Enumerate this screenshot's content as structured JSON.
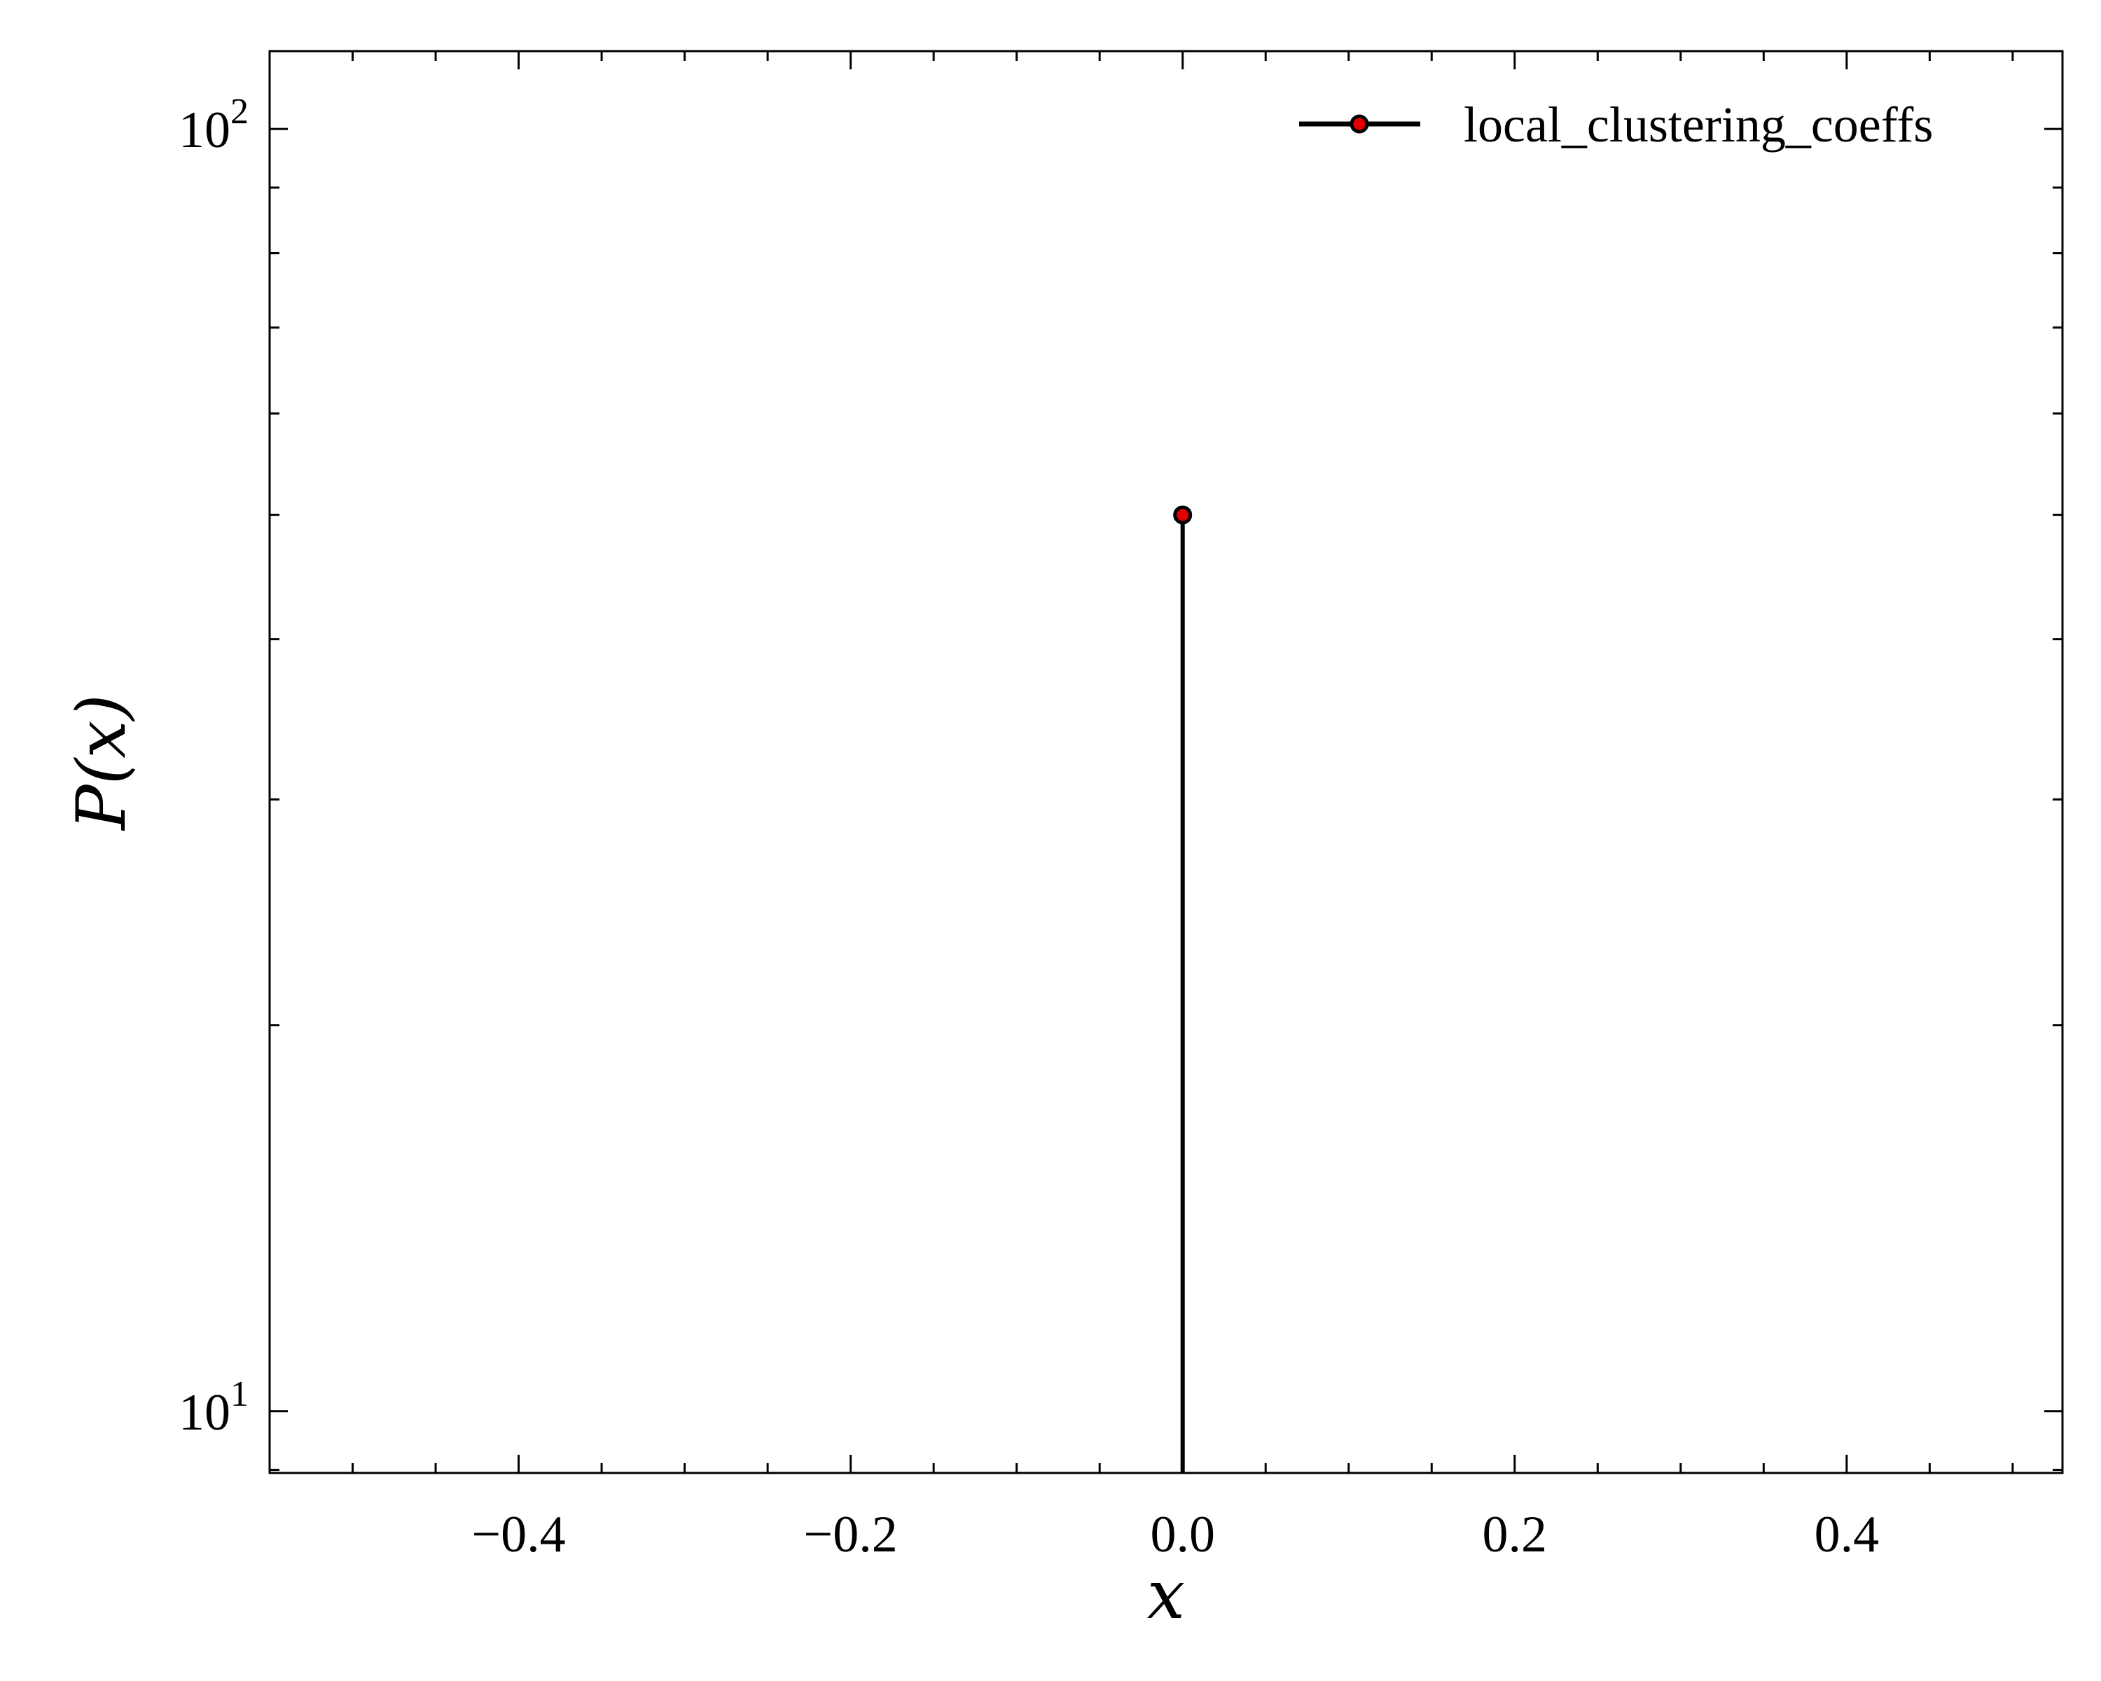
{
  "chart_data": {
    "type": "line",
    "title": "",
    "xlabel": "x",
    "ylabel": "P(x)",
    "xlim": [
      -0.55,
      0.53
    ],
    "ylim": [
      8.95,
      115
    ],
    "yscale": "log",
    "grid": false,
    "legend_position": "upper right",
    "x_ticks": [
      -0.4,
      -0.2,
      0.0,
      0.2,
      0.4
    ],
    "x_tick_labels": [
      "−0.4",
      "−0.2",
      "0.0",
      "0.2",
      "0.4"
    ],
    "y_ticks": [
      {
        "value": 10,
        "base": "10",
        "exp": "1"
      },
      {
        "value": 100,
        "base": "10",
        "exp": "2"
      }
    ],
    "series": [
      {
        "name": "local_clustering_coeffs",
        "x": [
          0.0
        ],
        "y": [
          50
        ],
        "line_color": "#000000",
        "marker_color": "#e00000",
        "marker_edge": "#000000",
        "style": "stem"
      }
    ]
  }
}
